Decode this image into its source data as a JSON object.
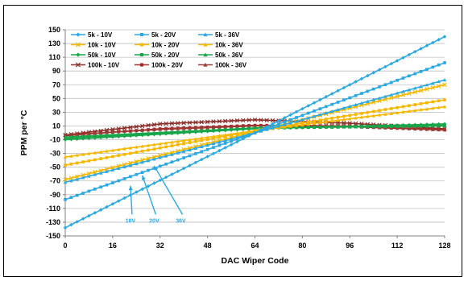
{
  "chart_data": {
    "type": "line",
    "xlabel": "DAC Wiper Code",
    "ylabel": "PPM per °C",
    "xlim": [
      0,
      128
    ],
    "ylim": [
      -150,
      150
    ],
    "xticks": [
      0,
      16,
      32,
      48,
      64,
      80,
      96,
      112,
      128
    ],
    "yticks": [
      -150,
      -130,
      -110,
      -90,
      -70,
      -50,
      -30,
      -10,
      10,
      30,
      50,
      70,
      90,
      110,
      130,
      150
    ],
    "grid": "horizontal",
    "legend_position": "top-left inside",
    "series": [
      {
        "name": "5k - 10V",
        "color": "#2ca9e1",
        "marker": "diamond",
        "x": [
          0,
          64,
          128
        ],
        "y": [
          -138,
          0,
          140
        ]
      },
      {
        "name": "5k - 20V",
        "color": "#2ca9e1",
        "marker": "square",
        "x": [
          0,
          64,
          128
        ],
        "y": [
          -97,
          0,
          102
        ]
      },
      {
        "name": "5k - 36V",
        "color": "#2ca9e1",
        "marker": "triangle",
        "x": [
          0,
          64,
          128
        ],
        "y": [
          -72,
          0,
          77
        ]
      },
      {
        "name": "10k - 10V",
        "color": "#f5b800",
        "marker": "x",
        "x": [
          0,
          64,
          128
        ],
        "y": [
          -68,
          2,
          70
        ]
      },
      {
        "name": "10k - 20V",
        "color": "#f5b800",
        "marker": "square",
        "x": [
          0,
          64,
          128
        ],
        "y": [
          -47,
          3,
          48
        ]
      },
      {
        "name": "10k - 36V",
        "color": "#f5b800",
        "marker": "triangle",
        "x": [
          0,
          64,
          128
        ],
        "y": [
          -35,
          3,
          38
        ]
      },
      {
        "name": "50k - 10V",
        "color": "#19a64b",
        "marker": "diamond",
        "x": [
          0,
          64,
          128
        ],
        "y": [
          -10,
          6,
          13
        ]
      },
      {
        "name": "50k - 20V",
        "color": "#19a64b",
        "marker": "square",
        "x": [
          0,
          64,
          128
        ],
        "y": [
          -8,
          7,
          11
        ]
      },
      {
        "name": "50k - 36V",
        "color": "#19a64b",
        "marker": "triangle",
        "x": [
          0,
          64,
          128
        ],
        "y": [
          -6,
          7,
          10
        ]
      },
      {
        "name": "100k - 10V",
        "color": "#8b2f2a",
        "marker": "x",
        "x": [
          0,
          32,
          64,
          96,
          128
        ],
        "y": [
          -3,
          13,
          19,
          14,
          6
        ]
      },
      {
        "name": "100k - 20V",
        "color": "#a52a2a",
        "marker": "square",
        "x": [
          0,
          32,
          64,
          96,
          128
        ],
        "y": [
          -4,
          6,
          11,
          10,
          5
        ]
      },
      {
        "name": "100k - 36V",
        "color": "#9b3a35",
        "marker": "triangle",
        "x": [
          0,
          32,
          64,
          96,
          128
        ],
        "y": [
          -3,
          5,
          10,
          9,
          4
        ]
      }
    ],
    "annotations": [
      {
        "text": "10V",
        "color": "#2ca9e1",
        "x": 22,
        "y": -127,
        "arrow_to": [
          22,
          -77
        ]
      },
      {
        "text": "20V",
        "color": "#2ca9e1",
        "x": 30,
        "y": -127,
        "arrow_to": [
          26,
          -62
        ]
      },
      {
        "text": "36V",
        "color": "#2ca9e1",
        "x": 39,
        "y": -127,
        "arrow_to": [
          30,
          -48
        ]
      }
    ]
  }
}
